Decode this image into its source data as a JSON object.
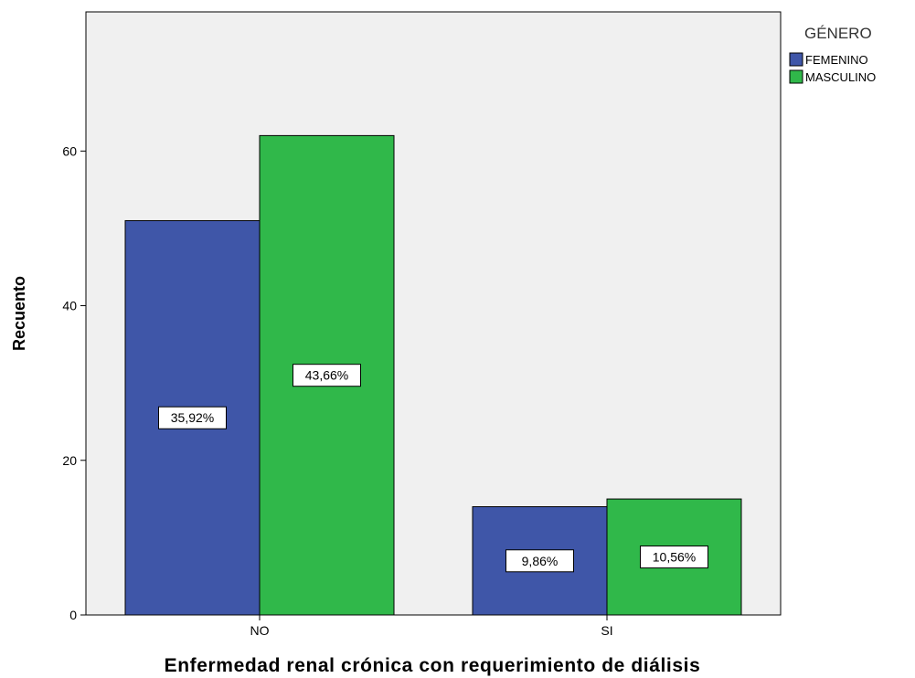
{
  "chart_data": {
    "type": "bar",
    "categories": [
      "NO",
      "SI"
    ],
    "series": [
      {
        "name": "FEMENINO",
        "values": [
          51,
          14
        ],
        "labels": [
          "35,92%",
          "9,86%"
        ],
        "color": "#3f56a8"
      },
      {
        "name": "MASCULINO",
        "values": [
          62,
          15
        ],
        "labels": [
          "43,66%",
          "10,56%"
        ],
        "color": "#30b84a"
      }
    ],
    "xlabel": "Enfermedad renal crónica con requerimiento de diálisis",
    "ylabel": "Recuento",
    "legend_title": "GÉNERO",
    "legend_position": "top-right",
    "yticks": [
      0,
      20,
      40,
      60
    ],
    "ylim": [
      0,
      78
    ],
    "grid": false,
    "colors": {
      "plot_background": "#f0f0f0",
      "border": "#000000"
    }
  }
}
